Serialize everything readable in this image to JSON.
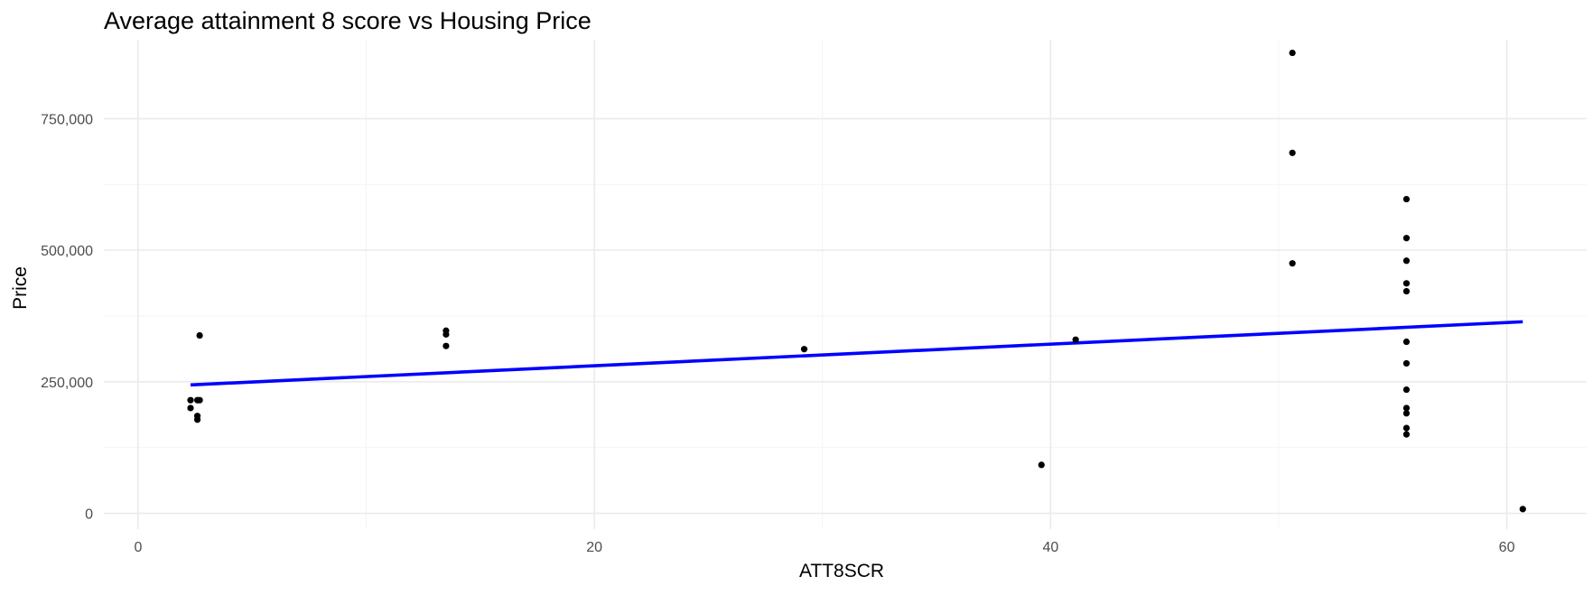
{
  "chart_data": {
    "type": "scatter",
    "title": "Average attainment 8 score vs Housing Price",
    "xlabel": "ATT8SCR",
    "ylabel": "Price",
    "xlim": [
      -1.5,
      63.5
    ],
    "ylim": [
      -30000,
      900000
    ],
    "x_ticks": [
      0,
      20,
      40,
      60
    ],
    "x_tick_labels": [
      "0",
      "20",
      "40",
      "60"
    ],
    "x_minor_ticks": [
      10,
      30,
      50
    ],
    "y_ticks": [
      0,
      250000,
      500000,
      750000
    ],
    "y_tick_labels": [
      "0",
      "250,000",
      "500,000",
      "750,000"
    ],
    "y_minor_ticks": [
      125000,
      375000,
      625000
    ],
    "grid": true,
    "legend": "none",
    "colors": {
      "points": "#000000",
      "trend_line": "#0000ff",
      "grid": "#ebebeb"
    },
    "points": [
      {
        "x": 2.3,
        "y": 215000
      },
      {
        "x": 2.3,
        "y": 200000
      },
      {
        "x": 2.6,
        "y": 215000
      },
      {
        "x": 2.6,
        "y": 185000
      },
      {
        "x": 2.6,
        "y": 178000
      },
      {
        "x": 2.7,
        "y": 215000
      },
      {
        "x": 2.7,
        "y": 338000
      },
      {
        "x": 13.5,
        "y": 347000
      },
      {
        "x": 13.5,
        "y": 340000
      },
      {
        "x": 13.5,
        "y": 318000
      },
      {
        "x": 29.2,
        "y": 312000
      },
      {
        "x": 39.6,
        "y": 92000
      },
      {
        "x": 41.1,
        "y": 330000
      },
      {
        "x": 50.6,
        "y": 875000
      },
      {
        "x": 50.6,
        "y": 685000
      },
      {
        "x": 50.6,
        "y": 475000
      },
      {
        "x": 55.6,
        "y": 597000
      },
      {
        "x": 55.6,
        "y": 523000
      },
      {
        "x": 55.6,
        "y": 480000
      },
      {
        "x": 55.6,
        "y": 437000
      },
      {
        "x": 55.6,
        "y": 422000
      },
      {
        "x": 55.6,
        "y": 326000
      },
      {
        "x": 55.6,
        "y": 285000
      },
      {
        "x": 55.6,
        "y": 235000
      },
      {
        "x": 55.6,
        "y": 200000
      },
      {
        "x": 55.6,
        "y": 190000
      },
      {
        "x": 55.6,
        "y": 162000
      },
      {
        "x": 55.6,
        "y": 150000
      },
      {
        "x": 60.7,
        "y": 8000
      }
    ],
    "trend_line": {
      "method": "linear",
      "x": [
        2.3,
        60.7
      ],
      "y": [
        244000,
        364000
      ]
    }
  }
}
